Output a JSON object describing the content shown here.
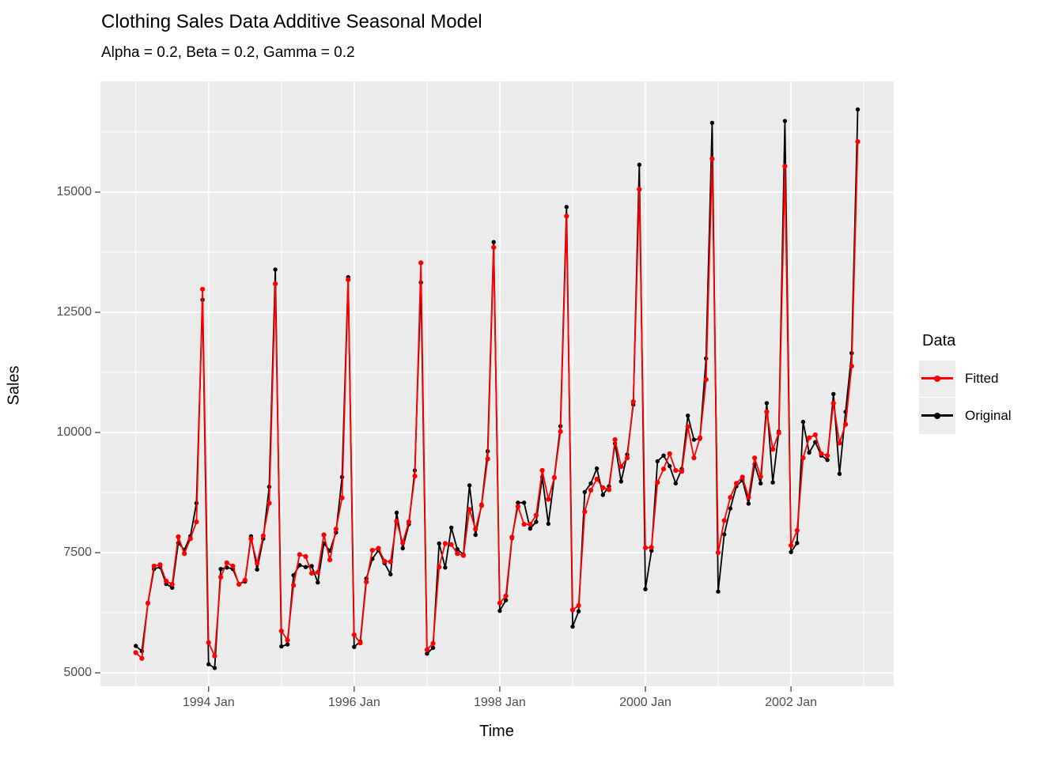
{
  "chart_data": {
    "type": "line",
    "title": "Clothing Sales Data Additive Seasonal Model",
    "subtitle": "Alpha = 0.2, Beta = 0.2, Gamma = 0.2",
    "xlabel": "Time",
    "ylabel": "Sales",
    "x_start": "1993 Jan",
    "x_end": "2002 Dec",
    "frequency": "monthly",
    "x_tick_labels": [
      "1994 Jan",
      "1996 Jan",
      "1998 Jan",
      "2000 Jan",
      "2002 Jan"
    ],
    "x_tick_months": [
      12,
      36,
      60,
      84,
      108
    ],
    "x_minor_months": [
      0,
      24,
      48,
      72,
      96,
      120
    ],
    "y_ticks": [
      5000,
      7500,
      10000,
      12500,
      15000
    ],
    "y_minor_ticks": [
      6250,
      8750,
      11250,
      13750,
      16250
    ],
    "ylim": [
      4700,
      17250
    ],
    "grid": true,
    "panel_color": "#EBEBEB",
    "gridline_color": "#FFFFFF",
    "legend": {
      "title": "Data",
      "position": "right",
      "entries": [
        {
          "label": "Fitted",
          "color": "#FF0000"
        },
        {
          "label": "Original",
          "color": "#000000"
        }
      ]
    },
    "series": [
      {
        "name": "Original",
        "color": "#000000",
        "values": [
          5560,
          5450,
          6440,
          7160,
          7200,
          6850,
          6770,
          7700,
          7560,
          7840,
          8530,
          12760,
          5180,
          5100,
          7160,
          7190,
          7160,
          6850,
          6900,
          7840,
          7150,
          7790,
          8870,
          13390,
          5550,
          5590,
          7030,
          7240,
          7200,
          7220,
          6880,
          7690,
          7540,
          7920,
          9070,
          13230,
          5540,
          5650,
          6960,
          7370,
          7550,
          7280,
          7050,
          8330,
          7590,
          8090,
          9210,
          13120,
          5400,
          5520,
          7690,
          7190,
          8020,
          7570,
          7460,
          8900,
          7870,
          8500,
          9610,
          13960,
          6290,
          6510,
          7800,
          8540,
          8540,
          8000,
          8140,
          9070,
          8100,
          9070,
          10130,
          14690,
          5960,
          6280,
          8760,
          8940,
          9250,
          8700,
          8880,
          9770,
          8980,
          9540,
          10580,
          15570,
          6740,
          7540,
          9400,
          9520,
          9300,
          8940,
          9240,
          10350,
          9850,
          9870,
          11540,
          16440,
          6690,
          7880,
          8420,
          8880,
          9010,
          8520,
          9340,
          8940,
          10610,
          8960,
          10020,
          16480,
          7510,
          7700,
          10220,
          9580,
          9800,
          9520,
          9430,
          10800,
          9140,
          10430,
          11650,
          16720
        ]
      },
      {
        "name": "Fitted",
        "color": "#FF0000",
        "values": [
          5420,
          5300,
          6450,
          7220,
          7250,
          6910,
          6840,
          7830,
          7480,
          7790,
          8140,
          12980,
          5630,
          5350,
          6990,
          7290,
          7220,
          6840,
          6930,
          7790,
          7280,
          7850,
          8530,
          13090,
          5870,
          5680,
          6820,
          7460,
          7420,
          7070,
          7090,
          7870,
          7350,
          7990,
          8640,
          13180,
          5790,
          5620,
          6890,
          7550,
          7590,
          7320,
          7310,
          8150,
          7700,
          8140,
          9090,
          13530,
          5480,
          5610,
          7200,
          7690,
          7670,
          7480,
          7440,
          8400,
          7990,
          8480,
          9450,
          13850,
          6450,
          6600,
          7820,
          8460,
          8090,
          8090,
          8280,
          9210,
          8610,
          9060,
          10020,
          14500,
          6310,
          6400,
          8350,
          8800,
          9030,
          8850,
          8810,
          9850,
          9290,
          9470,
          10640,
          15060,
          7600,
          7610,
          8960,
          9240,
          9560,
          9210,
          9190,
          10120,
          9470,
          9890,
          11100,
          15690,
          7500,
          8170,
          8650,
          8940,
          9070,
          8650,
          9470,
          9080,
          10430,
          9650,
          9990,
          15540,
          7650,
          7960,
          9470,
          9890,
          9950,
          9560,
          9520,
          10610,
          9780,
          10170,
          11380,
          16050
        ]
      }
    ]
  }
}
